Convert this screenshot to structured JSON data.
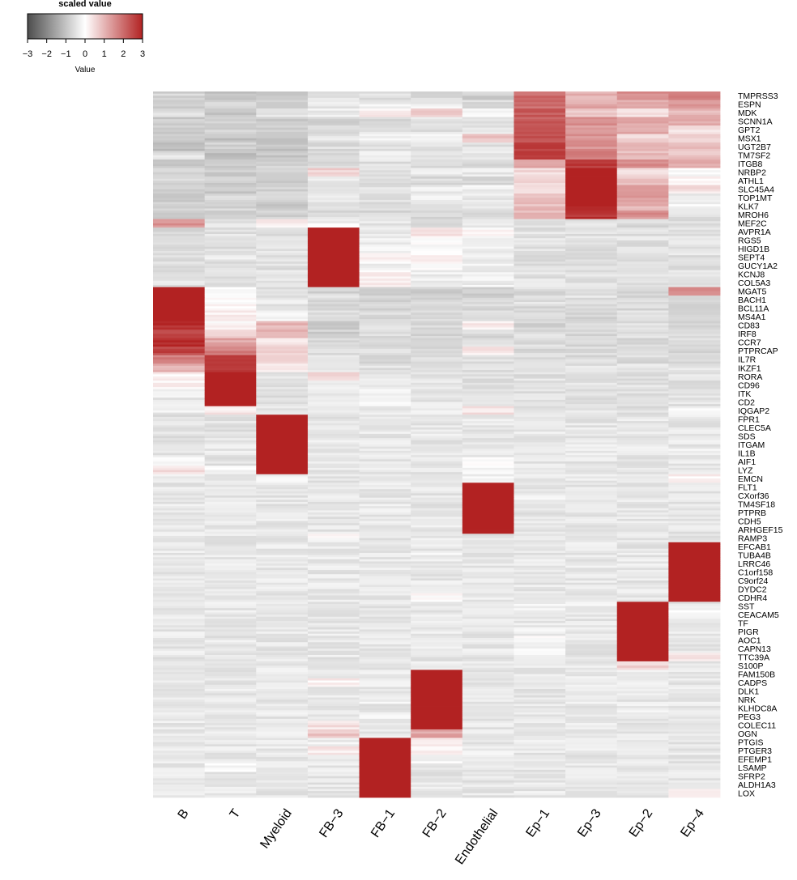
{
  "chart_data": {
    "type": "heatmap",
    "legend": {
      "title": "scaled value",
      "label": "Value",
      "ticks": [
        "−3",
        "−2",
        "−1",
        "0",
        "1",
        "2",
        "3"
      ],
      "range": [
        -3,
        3
      ],
      "colors": {
        "low": "#4d4d4d",
        "mid": "#ffffff",
        "high": "#b22222"
      }
    },
    "columns": [
      "B",
      "T",
      "Myeloid",
      "FB−3",
      "FB−1",
      "FB−2",
      "Endothelial",
      "Ep−1",
      "Ep−3",
      "Ep−2",
      "Ep−4"
    ],
    "genes": [
      "TMPRSS3",
      "ESPN",
      "MDK",
      "SCNN1A",
      "GPT2",
      "MSX1",
      "UGT2B7",
      "TM7SF2",
      "ITGB8",
      "NRBP2",
      "ATHL1",
      "SLC45A4",
      "TOP1MT",
      "KLK7",
      "MROH6",
      "MEF2C",
      "AVPR1A",
      "RGS5",
      "HIGD1B",
      "SEPT4",
      "GUCY1A2",
      "KCNJ8",
      "COL5A3",
      "MGAT5",
      "BACH1",
      "BCL11A",
      "MS4A1",
      "CD83",
      "IRF8",
      "CCR7",
      "PTPRCAP",
      "IL7R",
      "IKZF1",
      "RORA",
      "CD96",
      "ITK",
      "CD2",
      "IQGAP2",
      "FPR1",
      "CLEC5A",
      "SDS",
      "ITGAM",
      "IL1B",
      "AIF1",
      "LYZ",
      "EMCN",
      "FLT1",
      "CXorf36",
      "TM4SF18",
      "PTPRB",
      "CDH5",
      "ARHGEF15",
      "RAMP3",
      "EFCAB1",
      "TUBA4B",
      "LRRC46",
      "C1orf158",
      "C9orf24",
      "DYDC2",
      "CDHR4",
      "SST",
      "CEACAM5",
      "TF",
      "PIGR",
      "AOC1",
      "CAPN13",
      "TTC39A",
      "S100P",
      "FAM150B",
      "CADPS",
      "DLK1",
      "NRK",
      "KLHDC8A",
      "PEG3",
      "COLEC11",
      "OGN",
      "PTGIS",
      "PTGER3",
      "EFEMP1",
      "LSAMP",
      "SFRP2",
      "ALDH1A3",
      "LOX"
    ],
    "rows_per_gene": 4,
    "values": [
      [
        -0.7,
        -1,
        -0.8,
        -0.5,
        -0.5,
        -0.6,
        -0.8,
        2,
        1,
        1.5,
        1.6
      ],
      [
        -0.8,
        -0.7,
        -0.9,
        -0.4,
        -0.3,
        -0.3,
        -0.6,
        2,
        1.2,
        1.2,
        1.4
      ],
      [
        -0.6,
        -0.9,
        -0.5,
        -0.3,
        0.3,
        0.6,
        -0.2,
        2.2,
        0.8,
        0.4,
        1
      ],
      [
        -0.9,
        -0.8,
        -0.9,
        -0.7,
        -0.6,
        -0.5,
        -0.6,
        2.2,
        1.6,
        1.1,
        1.1
      ],
      [
        -0.9,
        -0.8,
        -0.9,
        -0.5,
        -0.5,
        -0.5,
        -0.5,
        2.2,
        1.2,
        1.2,
        0.4
      ],
      [
        -0.9,
        -1,
        -0.9,
        -0.4,
        -0.3,
        -0.3,
        0.8,
        2.4,
        1.4,
        0.6,
        0.6
      ],
      [
        -1,
        -0.8,
        -1,
        -0.6,
        -0.6,
        -0.5,
        -0.5,
        2.6,
        1.5,
        1,
        0.8
      ],
      [
        -0.5,
        -1.1,
        -0.9,
        -0.7,
        -0.2,
        -0.6,
        -0.4,
        2.8,
        1.7,
        0.9,
        0.8
      ],
      [
        -0.9,
        -0.8,
        -0.7,
        -0.6,
        -0.5,
        -0.6,
        -0.6,
        1.2,
        2.7,
        1.5,
        1.1
      ],
      [
        -0.8,
        -0.9,
        -0.8,
        0.6,
        -0.5,
        -0.4,
        -0.4,
        0.5,
        3,
        0.4,
        -0.2
      ],
      [
        -0.7,
        -0.8,
        -0.8,
        -0.3,
        -0.6,
        -0.6,
        -0.7,
        0.6,
        3,
        0.8,
        0.2
      ],
      [
        -0.8,
        -0.9,
        -0.8,
        -0.4,
        -0.5,
        -0.3,
        -0.3,
        0.6,
        3,
        1.2,
        0.4
      ],
      [
        -0.8,
        -0.7,
        -0.7,
        -0.3,
        -0.5,
        -0.3,
        -0.4,
        0.8,
        3,
        1.4,
        -0.4
      ],
      [
        -0.8,
        -0.7,
        -0.9,
        -0.6,
        -0.5,
        -0.5,
        -0.5,
        0.9,
        2.9,
        1,
        -0.2
      ],
      [
        -0.8,
        -0.8,
        -0.8,
        -0.6,
        -0.6,
        -0.6,
        -0.6,
        1,
        2.8,
        1.5,
        -0.5
      ],
      [
        1.5,
        -0.5,
        0.2,
        -0.2,
        -0.4,
        -0.5,
        -0.4,
        -0.5,
        -0.5,
        -0.6,
        -0.6
      ],
      [
        -0.6,
        -0.5,
        -0.6,
        3,
        -0.4,
        0.3,
        0.1,
        -0.5,
        -0.5,
        -0.5,
        -0.5
      ],
      [
        -0.5,
        -0.5,
        -0.5,
        3,
        -0.3,
        -0.1,
        -0.2,
        -0.5,
        -0.5,
        -0.5,
        -0.5
      ],
      [
        -0.5,
        -0.5,
        -0.5,
        3,
        -0.2,
        0,
        -0.3,
        -0.5,
        -0.5,
        -0.5,
        -0.5
      ],
      [
        -0.5,
        -0.4,
        -0.5,
        3,
        0.3,
        0.1,
        -0.3,
        -0.5,
        -0.5,
        -0.5,
        -0.5
      ],
      [
        -0.5,
        -0.5,
        -0.5,
        3,
        -0.2,
        0,
        -0.2,
        -0.5,
        -0.5,
        -0.5,
        -0.5
      ],
      [
        -0.5,
        -0.5,
        -0.5,
        3,
        0.2,
        -0.3,
        -0.3,
        -0.5,
        -0.5,
        -0.5,
        -0.5
      ],
      [
        -0.5,
        -0.5,
        -0.5,
        3,
        0.2,
        -0.3,
        -0.3,
        -0.5,
        -0.5,
        -0.5,
        -0.5
      ],
      [
        3,
        -0.2,
        -0.5,
        -0.7,
        -0.7,
        -0.8,
        -0.9,
        -0.6,
        -0.6,
        -0.7,
        1.5
      ],
      [
        3,
        0,
        -0.4,
        -0.6,
        -0.7,
        -0.7,
        -0.7,
        -0.5,
        -0.5,
        -0.6,
        -0.5
      ],
      [
        3,
        0.2,
        -0.4,
        -0.6,
        -0.7,
        -0.7,
        -0.6,
        -0.6,
        -0.6,
        -0.6,
        -0.6
      ],
      [
        3,
        0.2,
        -0.3,
        -0.6,
        -0.6,
        -0.6,
        -0.7,
        -0.6,
        -0.7,
        -0.6,
        -0.7
      ],
      [
        2.8,
        0.1,
        1,
        -0.9,
        -0.6,
        -0.6,
        0.3,
        -0.7,
        -0.7,
        -0.5,
        -0.8
      ],
      [
        2.6,
        0.5,
        1,
        -0.8,
        -0.6,
        -0.7,
        -0.6,
        -0.6,
        -0.7,
        -0.6,
        -0.7
      ],
      [
        2.8,
        1.2,
        0.4,
        -0.6,
        -0.6,
        -0.6,
        -0.4,
        -0.6,
        -0.6,
        -0.6,
        -0.6
      ],
      [
        2.5,
        1.7,
        0.6,
        -0.5,
        -0.6,
        -0.6,
        0.3,
        -0.6,
        -0.6,
        -0.6,
        -0.6
      ],
      [
        1.8,
        2.6,
        0.6,
        -0.5,
        -0.6,
        -0.6,
        -0.5,
        -0.6,
        -0.6,
        -0.6,
        -0.6
      ],
      [
        1,
        2.8,
        0.4,
        -0.5,
        -0.5,
        -0.5,
        -0.5,
        -0.5,
        -0.5,
        -0.5,
        -0.5
      ],
      [
        0.2,
        3,
        -0.4,
        0.5,
        -0.4,
        -0.4,
        -0.5,
        -0.5,
        -0.5,
        -0.5,
        -0.5
      ],
      [
        0.2,
        3,
        -0.5,
        -0.4,
        -0.4,
        -0.4,
        -0.5,
        -0.5,
        -0.5,
        -0.5,
        -0.5
      ],
      [
        -0.3,
        3,
        -0.5,
        -0.4,
        -0.1,
        -0.4,
        -0.5,
        -0.5,
        -0.5,
        -0.5,
        -0.5
      ],
      [
        -0.4,
        3,
        -0.5,
        -0.4,
        -0.2,
        -0.4,
        -0.5,
        -0.5,
        -0.5,
        -0.5,
        -0.5
      ],
      [
        -0.3,
        0.3,
        -0.4,
        -0.5,
        -0.4,
        -0.4,
        0.4,
        -0.5,
        -0.5,
        -0.5,
        -0.1
      ],
      [
        -0.5,
        -0.5,
        3,
        -0.4,
        -0.4,
        -0.4,
        -0.4,
        -0.4,
        -0.4,
        -0.4,
        -0.4
      ],
      [
        -0.5,
        -0.5,
        3,
        -0.4,
        -0.4,
        -0.4,
        -0.4,
        -0.4,
        -0.4,
        -0.4,
        -0.4
      ],
      [
        -0.5,
        -0.4,
        3,
        -0.4,
        -0.4,
        -0.4,
        -0.4,
        -0.4,
        -0.4,
        -0.4,
        -0.4
      ],
      [
        -0.5,
        -0.4,
        3,
        -0.4,
        -0.4,
        -0.4,
        -0.4,
        -0.4,
        -0.4,
        -0.4,
        -0.4
      ],
      [
        -0.4,
        -0.4,
        3,
        -0.4,
        -0.4,
        -0.4,
        -0.4,
        -0.4,
        -0.4,
        -0.4,
        -0.3
      ],
      [
        -0.2,
        -0.5,
        3,
        -0.4,
        -0.4,
        -0.4,
        0,
        -0.4,
        -0.4,
        -0.4,
        -0.4
      ],
      [
        0.4,
        -0.2,
        3,
        -0.4,
        -0.4,
        -0.4,
        -0.2,
        -0.4,
        -0.4,
        -0.4,
        -0.4
      ],
      [
        -0.4,
        -0.4,
        -0.3,
        -0.4,
        -0.4,
        -0.4,
        -0.2,
        -0.4,
        -0.4,
        -0.4,
        0.2
      ],
      [
        -0.4,
        -0.4,
        -0.4,
        -0.4,
        -0.4,
        -0.4,
        3,
        -0.4,
        -0.4,
        -0.4,
        -0.4
      ],
      [
        -0.4,
        -0.4,
        -0.4,
        -0.4,
        -0.4,
        -0.4,
        3,
        -0.3,
        -0.3,
        -0.4,
        -0.4
      ],
      [
        -0.4,
        -0.4,
        -0.4,
        -0.4,
        -0.4,
        -0.4,
        3,
        -0.4,
        -0.4,
        -0.4,
        -0.4
      ],
      [
        -0.4,
        -0.4,
        -0.4,
        -0.4,
        -0.4,
        -0.4,
        3,
        -0.4,
        -0.4,
        -0.4,
        -0.4
      ],
      [
        -0.4,
        -0.4,
        -0.4,
        -0.4,
        -0.4,
        -0.4,
        3,
        -0.4,
        -0.4,
        -0.4,
        -0.4
      ],
      [
        -0.4,
        -0.4,
        -0.4,
        -0.4,
        -0.4,
        -0.4,
        3,
        -0.4,
        -0.4,
        -0.4,
        -0.4
      ],
      [
        -0.4,
        -0.4,
        -0.4,
        0,
        -0.4,
        -0.4,
        -0.4,
        -0.4,
        -0.4,
        -0.4,
        -0.4
      ],
      [
        -0.4,
        -0.4,
        -0.4,
        -0.4,
        -0.4,
        -0.4,
        -0.4,
        -0.4,
        -0.4,
        -0.4,
        3
      ],
      [
        -0.4,
        -0.4,
        -0.4,
        -0.4,
        -0.4,
        -0.3,
        -0.4,
        -0.4,
        -0.4,
        -0.4,
        3
      ],
      [
        -0.4,
        -0.4,
        -0.4,
        -0.4,
        -0.4,
        -0.4,
        -0.4,
        -0.4,
        -0.4,
        -0.4,
        3
      ],
      [
        -0.4,
        -0.4,
        -0.4,
        -0.4,
        -0.4,
        -0.4,
        -0.4,
        -0.4,
        -0.4,
        -0.4,
        3
      ],
      [
        -0.4,
        -0.4,
        -0.4,
        -0.4,
        -0.4,
        -0.4,
        -0.4,
        -0.4,
        -0.4,
        -0.4,
        3
      ],
      [
        -0.4,
        -0.4,
        -0.4,
        -0.4,
        -0.4,
        -0.2,
        -0.4,
        -0.4,
        -0.4,
        -0.4,
        3
      ],
      [
        -0.4,
        -0.4,
        -0.4,
        -0.4,
        -0.4,
        0,
        -0.4,
        -0.4,
        -0.4,
        -0.4,
        3
      ],
      [
        -0.4,
        -0.4,
        -0.4,
        -0.4,
        -0.4,
        -0.4,
        -0.4,
        -0.2,
        -0.3,
        3,
        -0.4
      ],
      [
        -0.4,
        -0.4,
        -0.4,
        -0.4,
        -0.4,
        -0.4,
        -0.4,
        -0.4,
        -0.4,
        3,
        -0.2
      ],
      [
        -0.4,
        -0.4,
        -0.4,
        -0.4,
        -0.4,
        -0.4,
        -0.4,
        -0.4,
        -0.4,
        3,
        -0.4
      ],
      [
        -0.4,
        -0.4,
        -0.4,
        -0.4,
        -0.4,
        -0.4,
        -0.4,
        -0.3,
        -0.4,
        3,
        -0.4
      ],
      [
        -0.4,
        -0.4,
        -0.4,
        -0.4,
        -0.4,
        -0.4,
        -0.4,
        -0.1,
        -0.4,
        3,
        -0.4
      ],
      [
        -0.4,
        -0.4,
        -0.4,
        -0.4,
        -0.4,
        -0.4,
        -0.4,
        -0.2,
        -0.4,
        3,
        -0.4
      ],
      [
        -0.4,
        -0.4,
        -0.4,
        -0.4,
        -0.4,
        -0.4,
        -0.4,
        -0.3,
        -0.4,
        3,
        0.3
      ],
      [
        -0.4,
        -0.4,
        -0.4,
        -0.4,
        -0.4,
        -0.4,
        -0.4,
        -0.4,
        -0.4,
        0.6,
        -0.4
      ],
      [
        -0.4,
        -0.4,
        -0.4,
        -0.4,
        -0.3,
        3,
        -0.4,
        -0.4,
        -0.4,
        -0.4,
        -0.4
      ],
      [
        -0.4,
        -0.4,
        -0.4,
        0.2,
        -0.3,
        3,
        -0.4,
        -0.4,
        -0.4,
        -0.4,
        -0.4
      ],
      [
        -0.4,
        -0.4,
        -0.3,
        -0.4,
        -0.4,
        3,
        -0.4,
        -0.4,
        -0.4,
        -0.4,
        -0.4
      ],
      [
        -0.4,
        -0.4,
        -0.4,
        -0.4,
        -0.3,
        3,
        -0.4,
        -0.4,
        -0.4,
        -0.4,
        -0.4
      ],
      [
        -0.4,
        -0.4,
        -0.4,
        -0.4,
        -0.4,
        3,
        -0.4,
        -0.4,
        -0.4,
        -0.3,
        -0.4
      ],
      [
        -0.4,
        -0.4,
        -0.4,
        -0.4,
        -0.3,
        3,
        -0.4,
        -0.4,
        -0.4,
        -0.4,
        -0.4
      ],
      [
        -0.4,
        -0.4,
        -0.4,
        0.4,
        -0.4,
        3,
        -0.4,
        -0.4,
        -0.4,
        -0.4,
        -0.4
      ],
      [
        -0.4,
        -0.4,
        -0.4,
        0.8,
        -0.4,
        1.2,
        -0.4,
        -0.4,
        -0.4,
        -0.4,
        -0.4
      ],
      [
        -0.4,
        -0.4,
        -0.4,
        -0.3,
        3,
        0.2,
        -0.4,
        -0.4,
        -0.4,
        -0.4,
        -0.4
      ],
      [
        -0.4,
        -0.4,
        -0.4,
        0.3,
        3,
        0.1,
        -0.3,
        -0.4,
        -0.4,
        -0.4,
        -0.4
      ],
      [
        -0.4,
        -0.4,
        -0.4,
        -0.4,
        3,
        -0.1,
        -0.4,
        -0.4,
        -0.4,
        -0.4,
        -0.4
      ],
      [
        -0.4,
        -0.2,
        -0.4,
        -0.4,
        3,
        -0.4,
        -0.4,
        -0.4,
        -0.4,
        -0.4,
        -0.4
      ],
      [
        -0.4,
        -0.4,
        -0.4,
        -0.4,
        3,
        -0.4,
        -0.4,
        -0.4,
        -0.4,
        -0.4,
        -0.4
      ],
      [
        -0.4,
        -0.4,
        -0.4,
        -0.4,
        3,
        -0.4,
        -0.4,
        -0.4,
        -0.4,
        -0.4,
        -0.4
      ],
      [
        -0.4,
        -0.4,
        -0.4,
        -0.4,
        3,
        -0.4,
        -0.4,
        -0.4,
        -0.4,
        -0.4,
        0.1
      ]
    ]
  }
}
